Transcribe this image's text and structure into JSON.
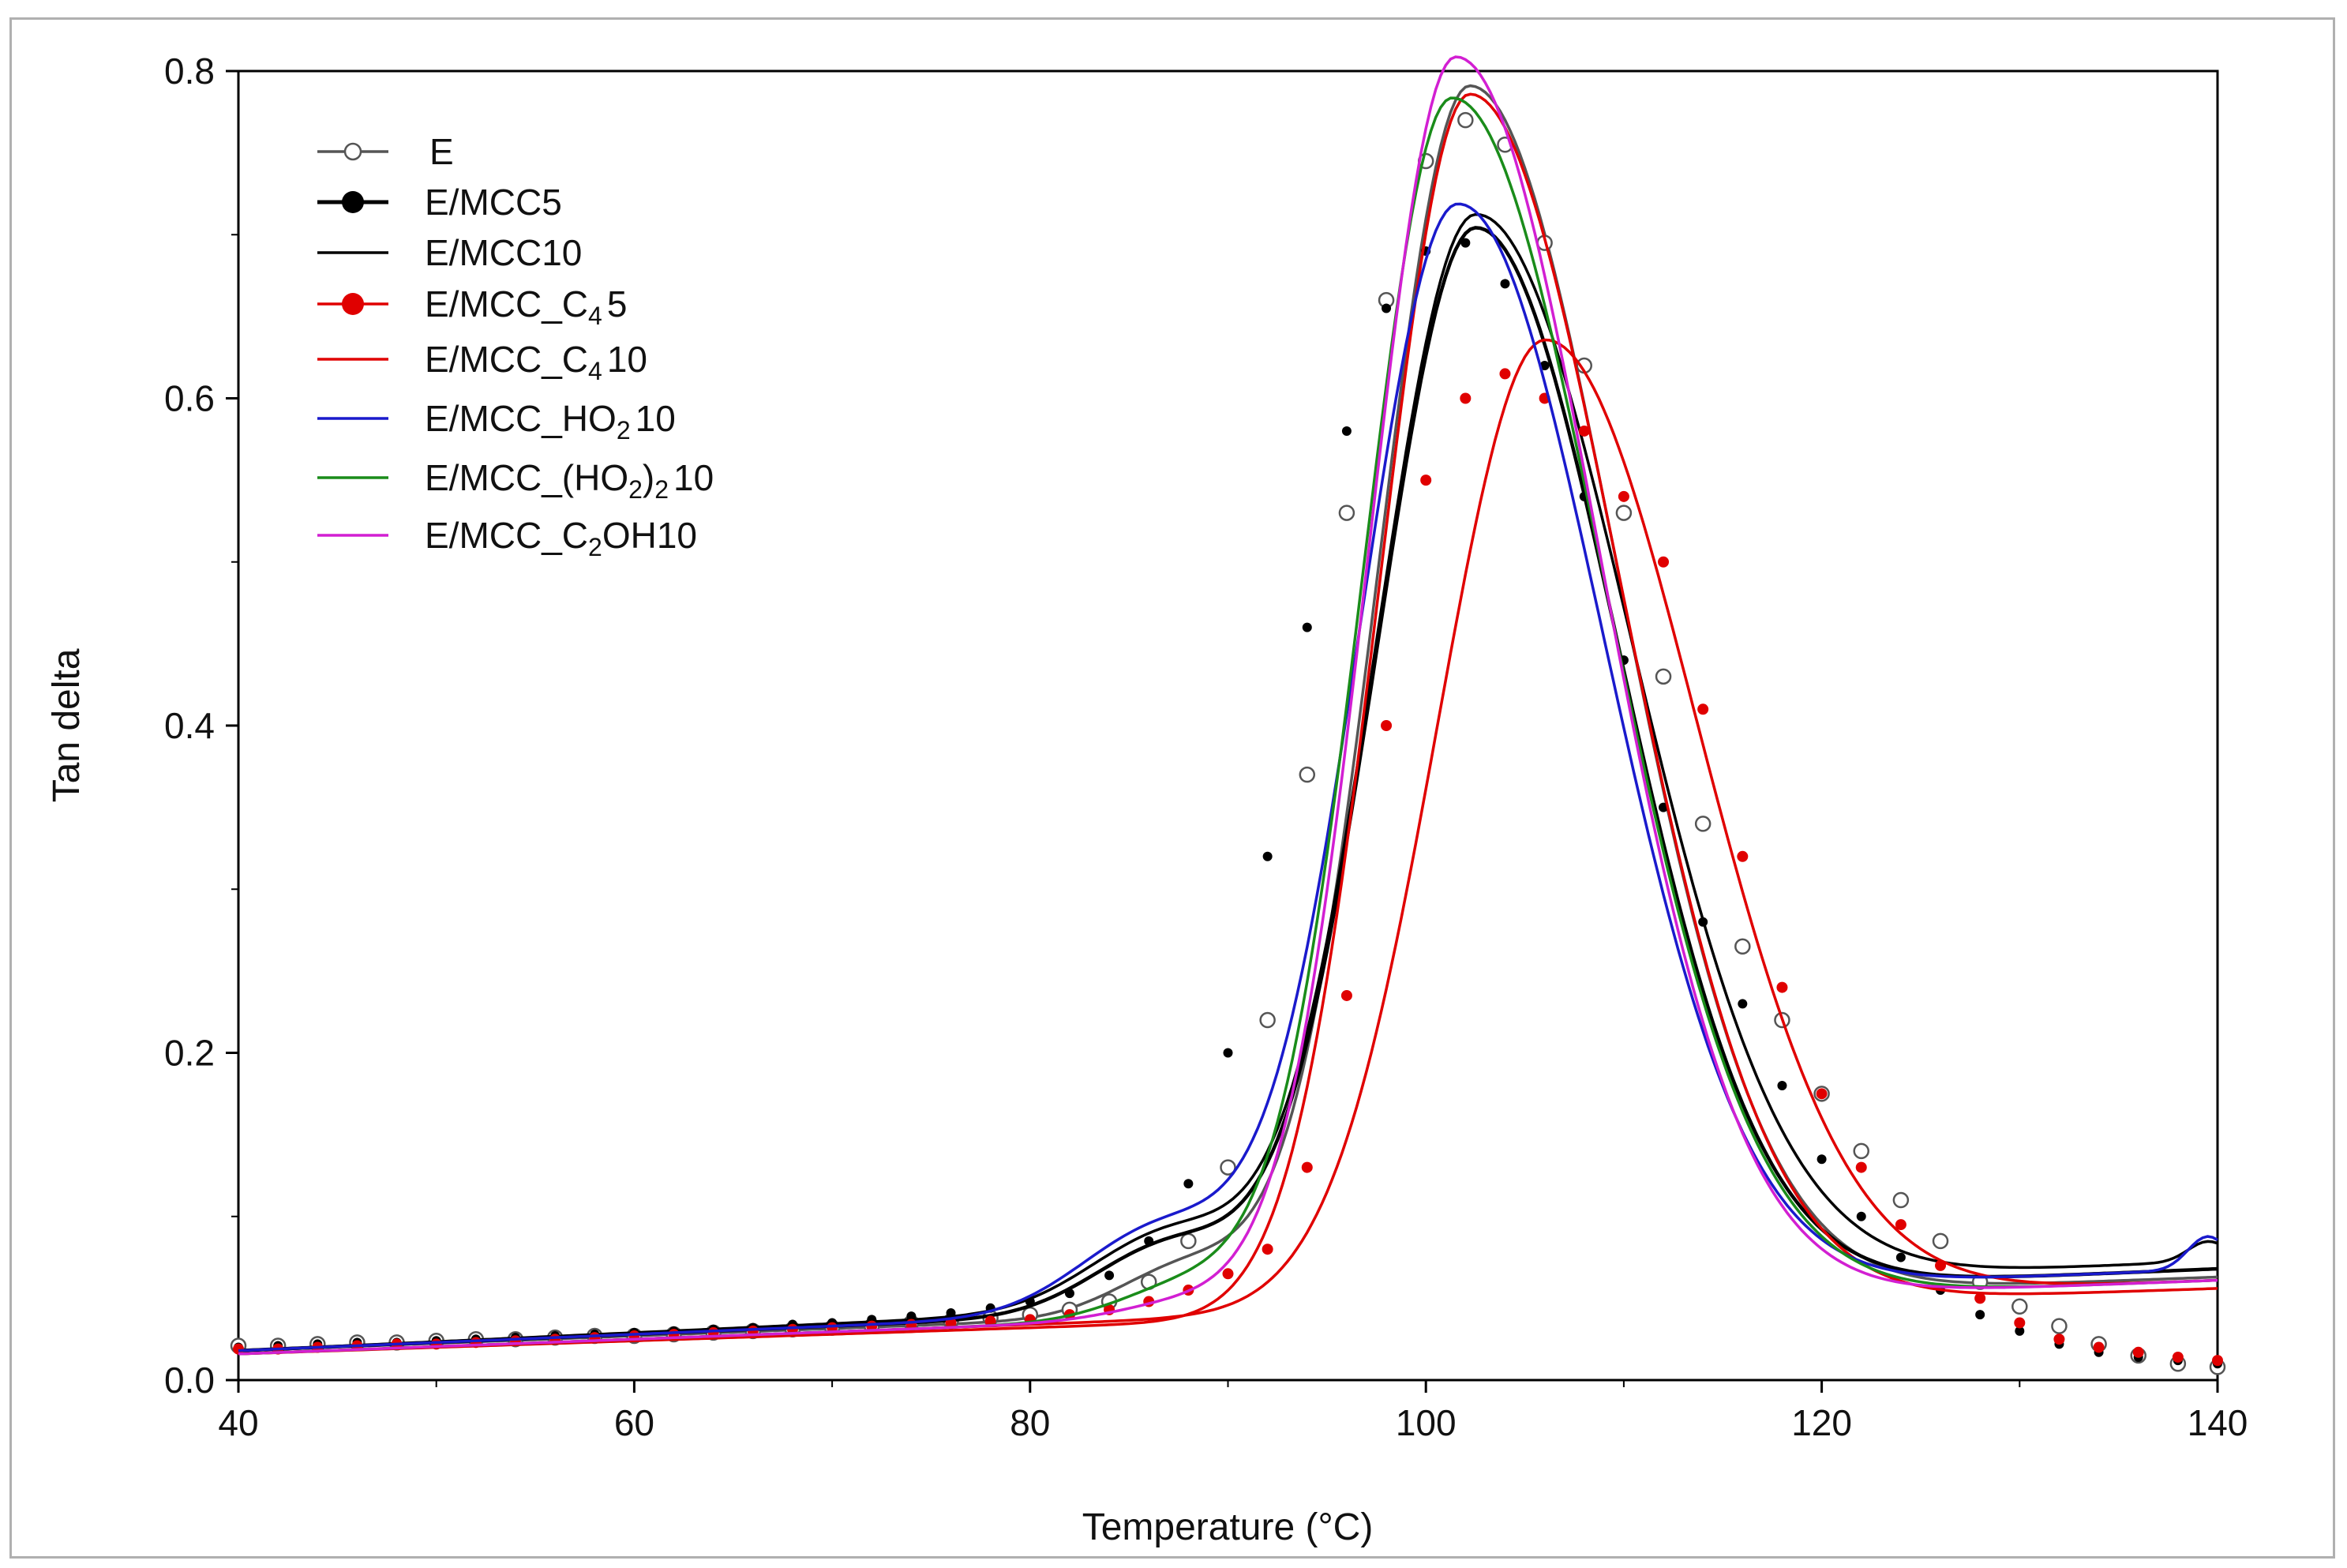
{
  "chart_data": {
    "type": "line",
    "title": "",
    "xlabel": "Temperature (°C)",
    "ylabel": "Tan delta",
    "xlim": [
      40,
      140
    ],
    "ylim": [
      0,
      0.8
    ],
    "xticks": [
      40,
      60,
      80,
      100,
      120,
      140
    ],
    "yticks": [
      0.0,
      0.2,
      0.4,
      0.6,
      0.8
    ],
    "ytick_labels": [
      "0.0",
      "0.2",
      "0.4",
      "0.6",
      "0.8"
    ],
    "legend_position": "top-left",
    "series": [
      {
        "name": "E",
        "legend": {
          "main": "E",
          "sub": "",
          "tail": ""
        },
        "color": "#555555",
        "marker": "open-circle",
        "base": 0.018,
        "slope": 0.00045,
        "peak": {
          "amp": 0.745,
          "center": 102.2,
          "wl": 4.6,
          "wr": 7.4
        },
        "shoulder": {
          "amp": 0.03,
          "center": 88,
          "w": 3.5
        },
        "tail": 0.0,
        "markers": [
          [
            40,
            0.021
          ],
          [
            42,
            0.021
          ],
          [
            44,
            0.022
          ],
          [
            46,
            0.023
          ],
          [
            48,
            0.023
          ],
          [
            50,
            0.024
          ],
          [
            52,
            0.025
          ],
          [
            54,
            0.025
          ],
          [
            56,
            0.026
          ],
          [
            58,
            0.027
          ],
          [
            60,
            0.027
          ],
          [
            62,
            0.028
          ],
          [
            64,
            0.029
          ],
          [
            66,
            0.03
          ],
          [
            68,
            0.031
          ],
          [
            70,
            0.032
          ],
          [
            72,
            0.033
          ],
          [
            74,
            0.035
          ],
          [
            76,
            0.036
          ],
          [
            78,
            0.038
          ],
          [
            80,
            0.04
          ],
          [
            82,
            0.043
          ],
          [
            84,
            0.048
          ],
          [
            86,
            0.06
          ],
          [
            88,
            0.085
          ],
          [
            90,
            0.13
          ],
          [
            92,
            0.22
          ],
          [
            94,
            0.37
          ],
          [
            96,
            0.53
          ],
          [
            98,
            0.66
          ],
          [
            100,
            0.745
          ],
          [
            102,
            0.77
          ],
          [
            104,
            0.755
          ],
          [
            106,
            0.695
          ],
          [
            108,
            0.62
          ],
          [
            110,
            0.53
          ],
          [
            112,
            0.43
          ],
          [
            114,
            0.34
          ],
          [
            116,
            0.265
          ],
          [
            118,
            0.22
          ],
          [
            120,
            0.175
          ],
          [
            122,
            0.14
          ],
          [
            124,
            0.11
          ],
          [
            126,
            0.085
          ],
          [
            128,
            0.06
          ],
          [
            130,
            0.045
          ],
          [
            132,
            0.033
          ],
          [
            134,
            0.022
          ],
          [
            136,
            0.015
          ],
          [
            138,
            0.01
          ],
          [
            140,
            0.008
          ]
        ]
      },
      {
        "name": "E/MCC5",
        "legend": {
          "main": "E/MCC5",
          "sub": "",
          "tail": ""
        },
        "color": "#000000",
        "marker": "filled-circle",
        "base": 0.018,
        "slope": 0.0005,
        "peak": {
          "amp": 0.655,
          "center": 102.5,
          "wl": 5.0,
          "wr": 7.2
        },
        "shoulder": {
          "amp": 0.04,
          "center": 87,
          "w": 3.8
        },
        "tail": 0.0,
        "markers": [
          [
            40,
            0.02
          ],
          [
            42,
            0.021
          ],
          [
            44,
            0.022
          ],
          [
            46,
            0.023
          ],
          [
            48,
            0.023
          ],
          [
            50,
            0.024
          ],
          [
            52,
            0.025
          ],
          [
            54,
            0.026
          ],
          [
            56,
            0.027
          ],
          [
            58,
            0.028
          ],
          [
            60,
            0.029
          ],
          [
            62,
            0.03
          ],
          [
            64,
            0.031
          ],
          [
            66,
            0.032
          ],
          [
            68,
            0.034
          ],
          [
            70,
            0.035
          ],
          [
            72,
            0.037
          ],
          [
            74,
            0.039
          ],
          [
            76,
            0.041
          ],
          [
            78,
            0.044
          ],
          [
            80,
            0.048
          ],
          [
            82,
            0.053
          ],
          [
            84,
            0.064
          ],
          [
            86,
            0.085
          ],
          [
            88,
            0.12
          ],
          [
            90,
            0.2
          ],
          [
            92,
            0.32
          ],
          [
            94,
            0.46
          ],
          [
            96,
            0.58
          ],
          [
            98,
            0.655
          ],
          [
            100,
            0.69
          ],
          [
            102,
            0.695
          ],
          [
            104,
            0.67
          ],
          [
            106,
            0.62
          ],
          [
            108,
            0.54
          ],
          [
            110,
            0.44
          ],
          [
            112,
            0.35
          ],
          [
            114,
            0.28
          ],
          [
            116,
            0.23
          ],
          [
            118,
            0.18
          ],
          [
            120,
            0.135
          ],
          [
            122,
            0.1
          ],
          [
            124,
            0.075
          ],
          [
            126,
            0.055
          ],
          [
            128,
            0.04
          ],
          [
            130,
            0.03
          ],
          [
            132,
            0.022
          ],
          [
            134,
            0.017
          ],
          [
            136,
            0.014
          ],
          [
            138,
            0.012
          ],
          [
            140,
            0.01
          ]
        ]
      },
      {
        "name": "E/MCC10",
        "legend": {
          "main": "E/MCC10",
          "sub": "",
          "tail": ""
        },
        "color": "#000000",
        "marker": "none",
        "base": 0.018,
        "slope": 0.00055,
        "peak": {
          "amp": 0.66,
          "center": 102.5,
          "wl": 5.0,
          "wr": 7.8
        },
        "shoulder": {
          "amp": 0.045,
          "center": 87,
          "w": 4.0
        },
        "tail": 0.012,
        "markers": []
      },
      {
        "name": "E/MCC_C₄5",
        "legend": {
          "main": "E/MCC_C",
          "sub": "4",
          "tail": "5"
        },
        "color": "#e00000",
        "marker": "red-dot",
        "base": 0.016,
        "slope": 0.00045,
        "peak": {
          "amp": 0.59,
          "center": 106.0,
          "wl": 5.4,
          "wr": 7.6
        },
        "shoulder": {
          "amp": 0.0,
          "center": 88,
          "w": 3.0
        },
        "tail": 0.0,
        "markers": [
          [
            40,
            0.019
          ],
          [
            42,
            0.019
          ],
          [
            44,
            0.02
          ],
          [
            46,
            0.021
          ],
          [
            48,
            0.022
          ],
          [
            50,
            0.022
          ],
          [
            52,
            0.023
          ],
          [
            54,
            0.024
          ],
          [
            56,
            0.025
          ],
          [
            58,
            0.026
          ],
          [
            60,
            0.027
          ],
          [
            62,
            0.028
          ],
          [
            64,
            0.029
          ],
          [
            66,
            0.03
          ],
          [
            68,
            0.031
          ],
          [
            70,
            0.032
          ],
          [
            72,
            0.033
          ],
          [
            74,
            0.034
          ],
          [
            76,
            0.035
          ],
          [
            78,
            0.036
          ],
          [
            80,
            0.037
          ],
          [
            82,
            0.04
          ],
          [
            84,
            0.043
          ],
          [
            86,
            0.048
          ],
          [
            88,
            0.055
          ],
          [
            90,
            0.065
          ],
          [
            92,
            0.08
          ],
          [
            94,
            0.13
          ],
          [
            96,
            0.235
          ],
          [
            98,
            0.4
          ],
          [
            100,
            0.55
          ],
          [
            102,
            0.6
          ],
          [
            104,
            0.615
          ],
          [
            106,
            0.6
          ],
          [
            108,
            0.58
          ],
          [
            110,
            0.54
          ],
          [
            112,
            0.5
          ],
          [
            114,
            0.41
          ],
          [
            116,
            0.32
          ],
          [
            118,
            0.24
          ],
          [
            120,
            0.175
          ],
          [
            122,
            0.13
          ],
          [
            124,
            0.095
          ],
          [
            126,
            0.07
          ],
          [
            128,
            0.05
          ],
          [
            130,
            0.035
          ],
          [
            132,
            0.025
          ],
          [
            134,
            0.02
          ],
          [
            136,
            0.017
          ],
          [
            138,
            0.014
          ],
          [
            140,
            0.012
          ]
        ]
      },
      {
        "name": "E/MCC_C₄10",
        "legend": {
          "main": "E/MCC_C",
          "sub": "4",
          "tail": "10"
        },
        "color": "#e00000",
        "marker": "none",
        "base": 0.016,
        "slope": 0.0004,
        "peak": {
          "amp": 0.745,
          "center": 102.2,
          "wl": 4.5,
          "wr": 7.5
        },
        "shoulder": {
          "amp": 0.0,
          "center": 88,
          "w": 3.0
        },
        "tail": 0.0,
        "markers": []
      },
      {
        "name": "E/MCC_HO₂10",
        "legend": {
          "main": "E/MCC_HO",
          "sub": "2",
          "tail": "10"
        },
        "color": "#1a1acc",
        "marker": "none",
        "base": 0.018,
        "slope": 0.0005,
        "peak": {
          "amp": 0.67,
          "center": 101.6,
          "wl": 5.0,
          "wr": 7.3
        },
        "shoulder": {
          "amp": 0.05,
          "center": 86.5,
          "w": 4.0
        },
        "tail": 0.02,
        "markers": []
      },
      {
        "name": "E/MCC_(HO₂)₂10",
        "legend": {
          "main": "E/MCC_(HO",
          "sub": "2",
          "mid": ")",
          "sub2": "2",
          "tail": "10"
        },
        "color": "#1a8c1a",
        "marker": "none",
        "base": 0.016,
        "slope": 0.00045,
        "peak": {
          "amp": 0.74,
          "center": 101.3,
          "wl": 4.5,
          "wr": 7.6
        },
        "shoulder": {
          "amp": 0.02,
          "center": 88,
          "w": 3.5
        },
        "tail": 0.0,
        "markers": []
      },
      {
        "name": "E/MCC_C₂OH10",
        "legend": {
          "main": "E/MCC_C",
          "sub": "2",
          "tail": "OH10"
        },
        "color": "#d21fd2",
        "marker": "none",
        "base": 0.016,
        "slope": 0.00045,
        "peak": {
          "amp": 0.765,
          "center": 101.5,
          "wl": 4.4,
          "wr": 7.2
        },
        "shoulder": {
          "amp": 0.01,
          "center": 88,
          "w": 3.5
        },
        "tail": 0.0,
        "markers": []
      }
    ]
  }
}
